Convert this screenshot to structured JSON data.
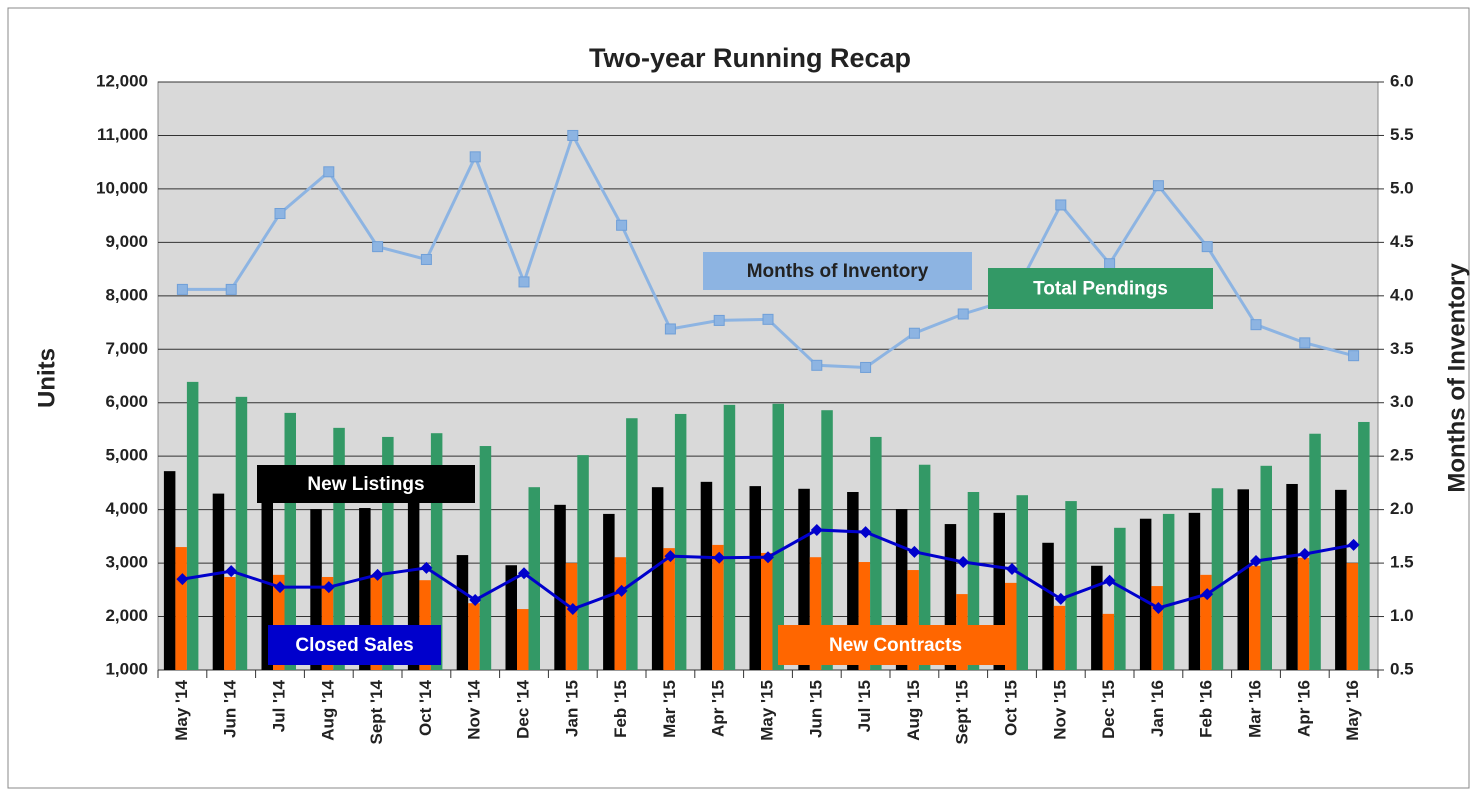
{
  "chart_data": {
    "type": "bar",
    "title": "Two-year Running Recap",
    "y_label": "Units",
    "y2_label": "Months of Inventory",
    "categories": [
      "May '14",
      "Jun '14",
      "Jul '14",
      "Aug '14",
      "Sept '14",
      "Oct '14",
      "Nov '14",
      "Dec '14",
      "Jan '15",
      "Feb '15",
      "Mar '15",
      "Apr '15",
      "May '15",
      "Jun '15",
      "Jul '15",
      "Aug '15",
      "Sept '15",
      "Oct '15",
      "Nov '15",
      "Dec '15",
      "Jan '16",
      "Feb '16",
      "Mar '16",
      "Apr '16",
      "May '16"
    ],
    "ylim": [
      1000,
      12000
    ],
    "yticks": [
      {
        "value": 1000,
        "label": "1,000"
      },
      {
        "value": 2000,
        "label": "2,000"
      },
      {
        "value": 3000,
        "label": "3,000"
      },
      {
        "value": 4000,
        "label": "4,000"
      },
      {
        "value": 5000,
        "label": "5,000"
      },
      {
        "value": 6000,
        "label": "6,000"
      },
      {
        "value": 7000,
        "label": "7,000"
      },
      {
        "value": 8000,
        "label": "8,000"
      },
      {
        "value": 9000,
        "label": "9,000"
      },
      {
        "value": 10000,
        "label": "10,000"
      },
      {
        "value": 11000,
        "label": "11,000"
      },
      {
        "value": 12000,
        "label": "12,000"
      }
    ],
    "y2lim": [
      0.5,
      6.0
    ],
    "y2ticks": [
      {
        "value": 0.5,
        "label": "0.5"
      },
      {
        "value": 1,
        "label": "1.0"
      },
      {
        "value": 1.5,
        "label": "1.5"
      },
      {
        "value": 2,
        "label": "2.0"
      },
      {
        "value": 2.5,
        "label": "2.5"
      },
      {
        "value": 3,
        "label": "3.0"
      },
      {
        "value": 3.5,
        "label": "3.5"
      },
      {
        "value": 4,
        "label": "4.0"
      },
      {
        "value": 4.5,
        "label": "4.5"
      },
      {
        "value": 5,
        "label": "5.0"
      },
      {
        "value": 5.5,
        "label": "5.5"
      },
      {
        "value": 6,
        "label": "6.0"
      }
    ],
    "grid": true,
    "series": [
      {
        "name": "New Listings",
        "type": "bar",
        "color": "#000000",
        "values": [
          4720,
          4300,
          4300,
          4010,
          4030,
          4140,
          3150,
          2960,
          4090,
          3920,
          4420,
          4520,
          4440,
          4390,
          4330,
          4010,
          3730,
          3940,
          3380,
          2950,
          3830,
          3940,
          4380,
          4480,
          4370
        ]
      },
      {
        "name": "New Contracts",
        "type": "bar",
        "color": "#ff6600",
        "values": [
          3300,
          2740,
          2780,
          2740,
          2780,
          2680,
          2250,
          2140,
          3000,
          3110,
          3280,
          3340,
          3190,
          3110,
          3020,
          2870,
          2420,
          2630,
          2200,
          2050,
          2570,
          2780,
          2950,
          3100,
          3000
        ]
      },
      {
        "name": "Total Pendings",
        "type": "bar",
        "color": "#339966",
        "values": [
          6390,
          6110,
          5810,
          5530,
          5360,
          5430,
          5190,
          4420,
          5020,
          5710,
          5790,
          5960,
          5980,
          5860,
          5360,
          4840,
          4330,
          4270,
          4160,
          3660,
          3920,
          4400,
          4820,
          5420,
          5640
        ]
      },
      {
        "name": "Closed Sales",
        "type": "line",
        "color": "#0000cc",
        "values": [
          2700,
          2850,
          2550,
          2550,
          2780,
          2910,
          2310,
          2810,
          2140,
          2480,
          3130,
          3100,
          3110,
          3620,
          3580,
          3210,
          3020,
          2890,
          2330,
          2670,
          2160,
          2420,
          3040,
          3170,
          3340
        ]
      },
      {
        "name": "Months of Inventory",
        "type": "line",
        "axis": "y2",
        "color": "#8db4e2",
        "values": [
          4.06,
          4.06,
          4.77,
          5.16,
          4.46,
          4.34,
          5.3,
          4.13,
          5.5,
          4.66,
          3.69,
          3.77,
          3.78,
          3.35,
          3.33,
          3.65,
          3.83,
          3.97,
          4.85,
          4.3,
          5.03,
          4.46,
          3.73,
          3.56,
          3.44
        ]
      }
    ]
  }
}
